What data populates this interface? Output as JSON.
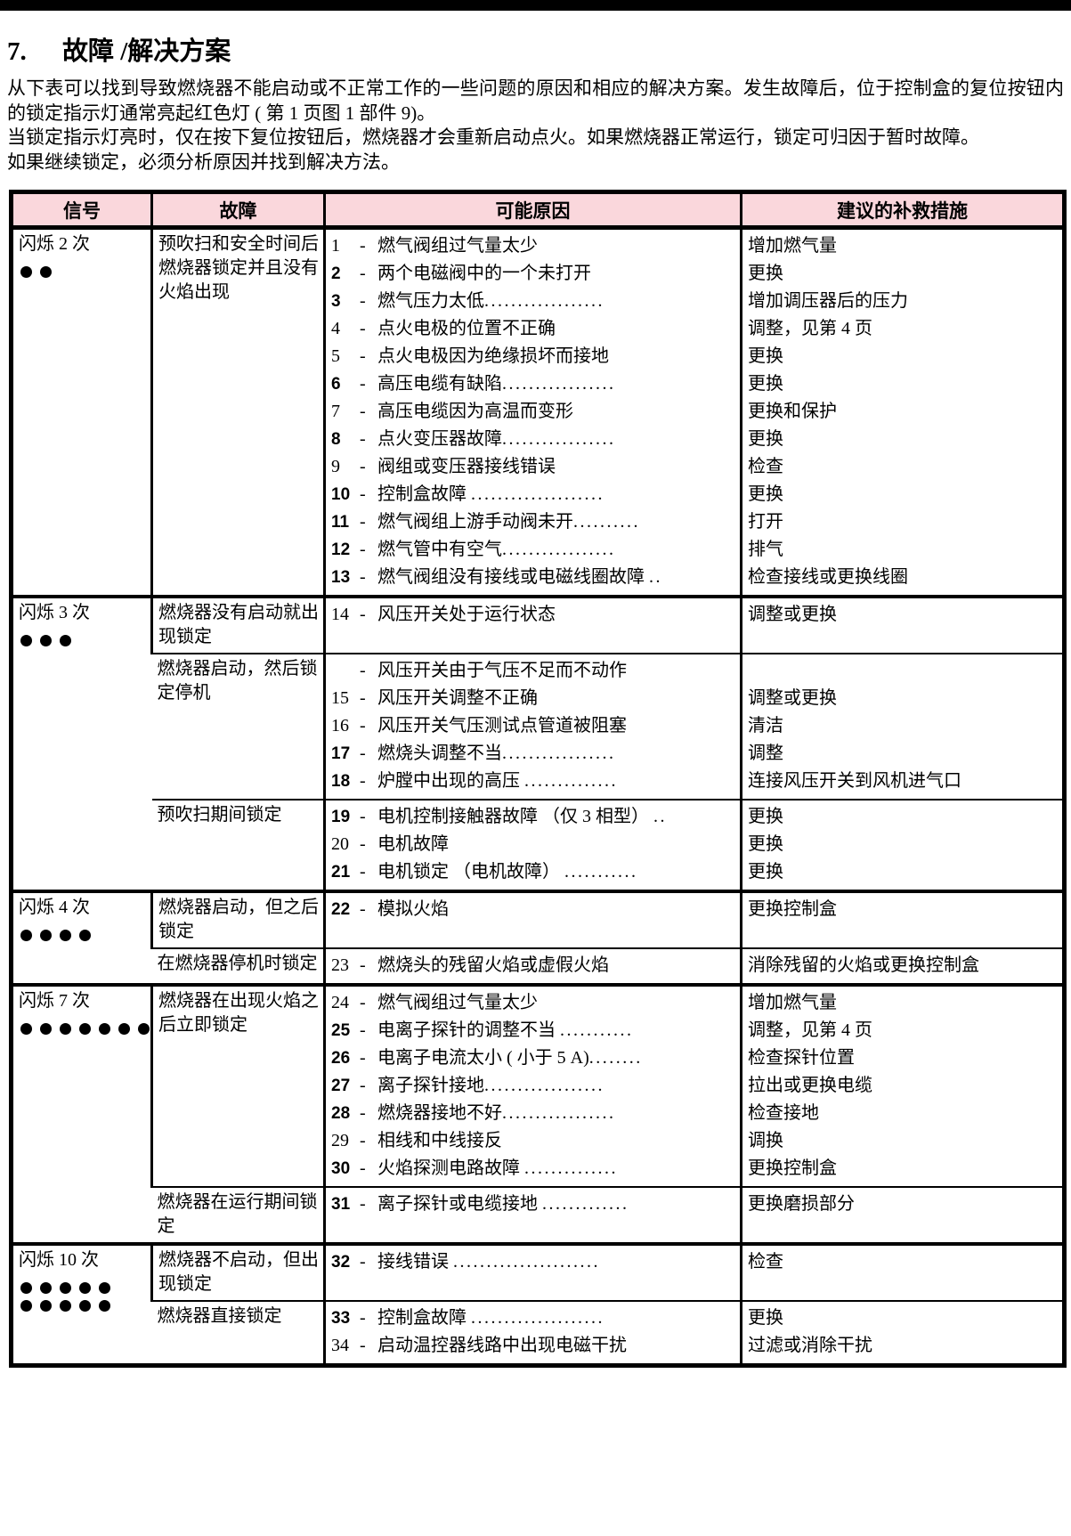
{
  "page": {
    "title_number": "7.",
    "title_text": "故障 /解决方案",
    "intro": [
      "从下表可以找到导致燃烧器不能启动或不正常工作的一些问题的原因和相应的解决方案。发生故障后，位于控制盒的复位按钮内的锁定指示灯通常亮起红色灯 ( 第 1 页图 1 部件 9)。",
      "当锁定指示灯亮时，仅在按下复位按钮后，燃烧器才会重新启动点火。如果燃烧器正常运行，锁定可归因于暂时故障。",
      "如果继续锁定，必须分析原因并找到解决方法。"
    ]
  },
  "colors": {
    "header_bg": "#FAD7DC",
    "border": "#000000",
    "page_bg": "#FFFFFF"
  },
  "table": {
    "dash": "-",
    "headers": [
      "信号",
      "故障",
      "可能原因",
      "建议的补救措施"
    ],
    "groups": [
      {
        "signal": "闪烁 2 次",
        "dot_rows": [
          2
        ],
        "subrows": [
          {
            "fault": "预吹扫和安全时间后燃烧器锁定并且没有火焰出现",
            "items": [
              {
                "num": "1",
                "bold": false,
                "text": "燃气阀组过气量太少",
                "leader": "",
                "remedy": "增加燃气量"
              },
              {
                "num": "2",
                "bold": true,
                "text": "两个电磁阀中的一个未打开",
                "leader": "",
                "remedy": "更换"
              },
              {
                "num": "3",
                "bold": true,
                "text": "燃气压力太低",
                "leader": "..................",
                "remedy": "增加调压器后的压力"
              },
              {
                "num": "4",
                "bold": false,
                "text": "点火电极的位置不正确",
                "leader": "",
                "remedy": "调整，见第 4 页"
              },
              {
                "num": "5",
                "bold": false,
                "text": "点火电极因为绝缘损坏而接地",
                "leader": "",
                "remedy": "更换"
              },
              {
                "num": "6",
                "bold": true,
                "text": "高压电缆有缺陷",
                "leader": ".................",
                "remedy": "更换"
              },
              {
                "num": "7",
                "bold": false,
                "text": "高压电缆因为高温而变形",
                "leader": "",
                "remedy": "更换和保护"
              },
              {
                "num": "8",
                "bold": true,
                "text": "点火变压器故障",
                "leader": ".................",
                "remedy": "更换"
              },
              {
                "num": "9",
                "bold": false,
                "text": "阀组或变压器接线错误",
                "leader": "",
                "remedy": "检查"
              },
              {
                "num": "10",
                "bold": true,
                "text": "控制盒故障 ",
                "leader": "....................",
                "remedy": "更换"
              },
              {
                "num": "11",
                "bold": true,
                "text": "燃气阀组上游手动阀未开",
                "leader": "..........",
                "remedy": "打开"
              },
              {
                "num": "12",
                "bold": true,
                "text": "燃气管中有空气",
                "leader": ".................",
                "remedy": "排气"
              },
              {
                "num": "13",
                "bold": true,
                "text": "燃气阀组没有接线或电磁线圈故障 ",
                "leader": "..",
                "remedy": "检查接线或更换线圈"
              }
            ]
          }
        ]
      },
      {
        "signal": "闪烁 3 次",
        "dot_rows": [
          3
        ],
        "subrows": [
          {
            "fault": "燃烧器没有启动就出现锁定",
            "items": [
              {
                "num": "14",
                "bold": false,
                "text": "风压开关处于运行状态",
                "leader": "",
                "remedy": "调整或更换"
              }
            ]
          },
          {
            "fault": "燃烧器启动，然后锁定停机",
            "items": [
              {
                "num": "",
                "bold": false,
                "text": "风压开关由于气压不足而不动作",
                "leader": "",
                "remedy": ""
              },
              {
                "num": "15",
                "bold": false,
                "text": "风压开关调整不正确",
                "leader": "",
                "remedy": "调整或更换"
              },
              {
                "num": "16",
                "bold": false,
                "text": "风压开关气压测试点管道被阻塞",
                "leader": "",
                "remedy": "清洁"
              },
              {
                "num": "17",
                "bold": true,
                "text": "燃烧头调整不当",
                "leader": ".................",
                "remedy": "调整"
              },
              {
                "num": "18",
                "bold": true,
                "text": "炉膛中出现的高压 ",
                "leader": "..............",
                "remedy": "连接风压开关到风机进气口"
              }
            ]
          },
          {
            "fault": "预吹扫期间锁定",
            "items": [
              {
                "num": "19",
                "bold": true,
                "text": "电机控制接触器故障 （仅 3 相型） ",
                "leader": "..",
                "remedy": "更换"
              },
              {
                "num": "20",
                "bold": false,
                "text": "电机故障",
                "leader": "",
                "remedy": "更换"
              },
              {
                "num": "21",
                "bold": true,
                "text": "电机锁定 （电机故障） ",
                "leader": "...........",
                "remedy": "更换"
              }
            ]
          }
        ]
      },
      {
        "signal": "闪烁 4 次",
        "dot_rows": [
          4
        ],
        "subrows": [
          {
            "fault": "燃烧器启动，但之后锁定",
            "items": [
              {
                "num": "22",
                "bold": true,
                "text": "模拟火焰",
                "leader": "",
                "remedy": "更换控制盒"
              }
            ]
          },
          {
            "fault": "在燃烧器停机时锁定",
            "items": [
              {
                "num": "23",
                "bold": false,
                "text": "燃烧头的残留火焰或虚假火焰",
                "leader": "",
                "remedy": "消除残留的火焰或更换控制盒"
              }
            ]
          }
        ]
      },
      {
        "signal": "闪烁 7 次",
        "dot_rows": [
          7
        ],
        "subrows": [
          {
            "fault": "燃烧器在出现火焰之后立即锁定",
            "items": [
              {
                "num": "24",
                "bold": false,
                "text": "燃气阀组过气量太少",
                "leader": "",
                "remedy": "增加燃气量"
              },
              {
                "num": "25",
                "bold": true,
                "text": "电离子探针的调整不当 ",
                "leader": "...........",
                "remedy": "调整，见第 4 页"
              },
              {
                "num": "26",
                "bold": true,
                "text": "电离子电流太小 ( 小于 5 A)",
                "leader": "........",
                "remedy": "检查探针位置"
              },
              {
                "num": "27",
                "bold": true,
                "text": "离子探针接地",
                "leader": "..................",
                "remedy": "拉出或更换电缆"
              },
              {
                "num": "28",
                "bold": true,
                "text": "燃烧器接地不好",
                "leader": ".................",
                "remedy": "检查接地"
              },
              {
                "num": "29",
                "bold": false,
                "text": "相线和中线接反",
                "leader": "",
                "remedy": "调换"
              },
              {
                "num": "30",
                "bold": true,
                "text": "火焰探测电路故障 ",
                "leader": "..............",
                "remedy": "更换控制盒"
              }
            ]
          },
          {
            "fault": "燃烧器在运行期间锁定",
            "items": [
              {
                "num": "31",
                "bold": true,
                "text": "离子探针或电缆接地 ",
                "leader": ".............",
                "remedy": "更换磨损部分"
              }
            ]
          }
        ]
      },
      {
        "signal": "闪烁 10 次",
        "dot_rows": [
          5,
          5
        ],
        "subrows": [
          {
            "fault": "燃烧器不启动，但出现锁定",
            "items": [
              {
                "num": "32",
                "bold": true,
                "text": "接线错误 ",
                "leader": "......................",
                "remedy": "检查"
              }
            ]
          },
          {
            "fault": "燃烧器直接锁定",
            "items": [
              {
                "num": "33",
                "bold": true,
                "text": "控制盒故障 ",
                "leader": "....................",
                "remedy": "更换"
              },
              {
                "num": "34",
                "bold": false,
                "text": "启动温控器线路中出现电磁干扰",
                "leader": "",
                "remedy": "过滤或消除干扰"
              }
            ]
          }
        ]
      }
    ]
  }
}
